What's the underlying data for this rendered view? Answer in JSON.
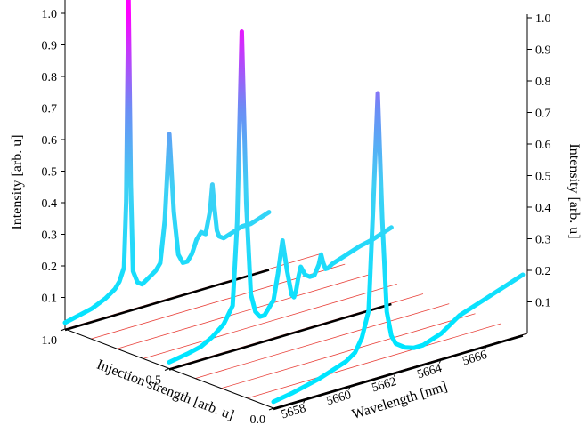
{
  "chart_data": {
    "type": "line",
    "subtype": "3d-waterfall",
    "title": "",
    "xlabel": "Wavelength [nm]",
    "ylabel": "Injection strength [arb. u]",
    "zlabel": "Intensity [arb. u]",
    "x_ticks": [
      "5658",
      "5660",
      "5662",
      "5664",
      "5666"
    ],
    "y_ticks": [
      "0.0",
      "0.5",
      "1.0"
    ],
    "z_ticks": [
      "0.1",
      "0.2",
      "0.3",
      "0.4",
      "0.5",
      "0.6",
      "0.7",
      "0.8",
      "0.9",
      "1.0"
    ],
    "xlim": [
      5656.6,
      5667.8
    ],
    "ylim": [
      0,
      1
    ],
    "zlim": [
      0,
      1
    ],
    "grid": true,
    "colors": {
      "low": "#00e5ff",
      "high": "#ff00ff",
      "base": "#000000",
      "grid": "#e8413a"
    },
    "series": [
      {
        "injection": 1.0,
        "x": [
          5656.6,
          5657.2,
          5657.8,
          5658.4,
          5658.8,
          5659.0,
          5659.2,
          5659.3,
          5659.4,
          5659.5,
          5659.6,
          5659.8,
          5660.0,
          5660.4,
          5660.6,
          5660.8,
          5661.0,
          5661.2,
          5661.4,
          5661.6,
          5661.8,
          5662.0,
          5662.2,
          5662.4,
          5662.6,
          5662.8,
          5663.0,
          5663.1,
          5663.2,
          5663.3,
          5663.4,
          5663.6,
          5664.0,
          5664.4,
          5664.8,
          5665.2,
          5665.6
        ],
        "z": [
          0.02,
          0.03,
          0.04,
          0.06,
          0.08,
          0.1,
          0.14,
          0.35,
          1.0,
          0.4,
          0.12,
          0.08,
          0.07,
          0.09,
          0.1,
          0.12,
          0.25,
          0.52,
          0.27,
          0.13,
          0.1,
          0.1,
          0.12,
          0.16,
          0.18,
          0.17,
          0.24,
          0.32,
          0.24,
          0.17,
          0.15,
          0.14,
          0.15,
          0.16,
          0.16,
          0.17,
          0.18
        ]
      },
      {
        "injection": 0.5,
        "x": [
          5656.6,
          5657.4,
          5658.0,
          5658.5,
          5659.0,
          5659.4,
          5659.6,
          5659.8,
          5660.0,
          5660.2,
          5660.4,
          5660.6,
          5660.8,
          5661.0,
          5661.2,
          5661.4,
          5661.6,
          5661.8,
          5662.0,
          5662.1,
          5662.2,
          5662.3,
          5662.4,
          5662.6,
          5662.8,
          5663.0,
          5663.2,
          5663.3,
          5663.4,
          5663.5,
          5663.6,
          5663.8,
          5664.2,
          5664.6,
          5665.0,
          5665.6,
          5666.4
        ],
        "z": [
          0.02,
          0.03,
          0.04,
          0.06,
          0.09,
          0.14,
          0.4,
          1.0,
          0.45,
          0.16,
          0.1,
          0.08,
          0.08,
          0.1,
          0.12,
          0.2,
          0.3,
          0.2,
          0.12,
          0.11,
          0.13,
          0.17,
          0.2,
          0.17,
          0.16,
          0.16,
          0.19,
          0.22,
          0.19,
          0.17,
          0.17,
          0.18,
          0.19,
          0.2,
          0.21,
          0.22,
          0.24
        ]
      },
      {
        "injection": 0.0,
        "x": [
          5656.6,
          5657.4,
          5658.0,
          5658.6,
          5659.0,
          5659.4,
          5659.8,
          5660.2,
          5660.5,
          5660.8,
          5661.0,
          5661.2,
          5661.4,
          5661.6,
          5661.8,
          5662.0,
          5662.4,
          5662.8,
          5663.2,
          5663.6,
          5664.0,
          5664.4,
          5664.8,
          5665.2,
          5665.6,
          5666.0,
          5666.4,
          5666.8,
          5667.2,
          5667.6
        ],
        "z": [
          0.02,
          0.03,
          0.04,
          0.05,
          0.06,
          0.07,
          0.08,
          0.1,
          0.14,
          0.22,
          0.55,
          0.9,
          0.5,
          0.2,
          0.12,
          0.09,
          0.07,
          0.06,
          0.06,
          0.07,
          0.08,
          0.1,
          0.12,
          0.13,
          0.14,
          0.15,
          0.16,
          0.17,
          0.18,
          0.19
        ]
      }
    ]
  }
}
